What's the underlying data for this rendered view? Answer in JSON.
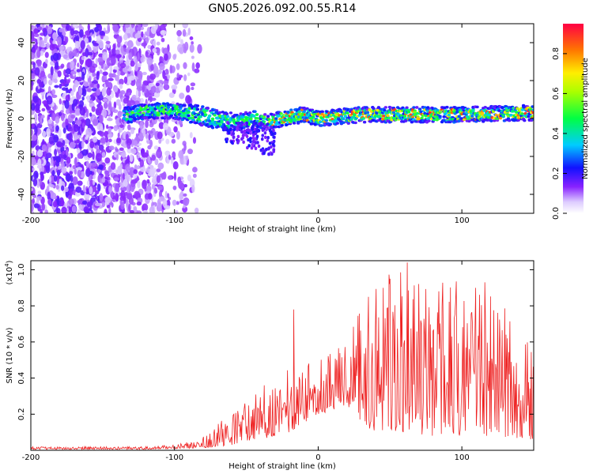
{
  "chart_data": [
    {
      "type": "heatmap",
      "title": "GN05.2026.092.00.55.R14",
      "xlabel": "Height of straight line (km)",
      "ylabel": "Frequency (Hz)",
      "xlim": [
        -200,
        150
      ],
      "ylim": [
        -50,
        50
      ],
      "xticks": [
        "-200",
        "-100",
        "0",
        "100"
      ],
      "yticks": [
        "-40",
        "-20",
        "0",
        "20",
        "40"
      ],
      "colorbar": {
        "label": "Normalized spectral amplitude",
        "range": [
          0,
          0.95
        ],
        "ticks": [
          "0.0",
          "0.2",
          "0.4",
          "0.6",
          "0.8"
        ]
      },
      "ridge": {
        "description": "dominant frequency band",
        "x": [
          -200,
          -130,
          -120,
          -100,
          -85,
          -60,
          -45,
          -35,
          -25,
          -10,
          0,
          30,
          60,
          100,
          150
        ],
        "y": [
          -2,
          2,
          4,
          4,
          2,
          -2,
          0,
          -2,
          0,
          2,
          0,
          2,
          2,
          2,
          3
        ]
      }
    },
    {
      "type": "line",
      "xlabel": "Height of straight line (km)",
      "ylabel": "SNR (10 * v/v)",
      "exponent_label": "(x10",
      "exponent_value": "4",
      "exponent_close": ")",
      "xlim": [
        -200,
        150
      ],
      "ylim": [
        0,
        1.05
      ],
      "xticks": [
        "-200",
        "-100",
        "0",
        "100"
      ],
      "yticks": [
        "0.2",
        "0.4",
        "0.6",
        "0.8",
        "1.0"
      ],
      "series": [
        {
          "name": "SNR",
          "color": "#ee2222",
          "envelope_x": [
            -200,
            -120,
            -100,
            -85,
            -70,
            -60,
            -50,
            -40,
            -30,
            -20,
            -10,
            0,
            10,
            20,
            30,
            40,
            60,
            80,
            100,
            120,
            150
          ],
          "envelope_low": [
            0.005,
            0.005,
            0.01,
            0.01,
            0.02,
            0.03,
            0.05,
            0.06,
            0.08,
            0.1,
            0.15,
            0.2,
            0.22,
            0.25,
            0.15,
            0.1,
            0.1,
            0.08,
            0.08,
            0.08,
            0.06
          ],
          "envelope_high": [
            0.02,
            0.02,
            0.03,
            0.06,
            0.15,
            0.22,
            0.28,
            0.35,
            0.4,
            0.45,
            0.5,
            0.55,
            0.55,
            0.6,
            0.8,
            0.95,
            1.0,
            0.95,
            0.95,
            0.9,
            0.6
          ]
        }
      ],
      "peaks": [
        {
          "x": -17,
          "y": 0.78
        },
        {
          "x": 62,
          "y": 1.04
        },
        {
          "x": 50,
          "y": 0.95
        },
        {
          "x": 116,
          "y": 0.93
        },
        {
          "x": 35,
          "y": 0.85
        }
      ]
    }
  ]
}
